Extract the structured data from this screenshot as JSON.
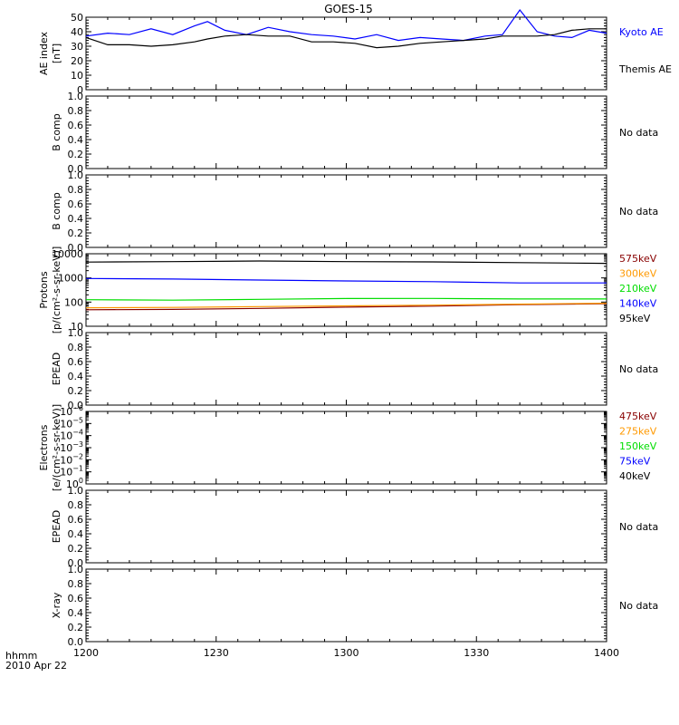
{
  "title": "GOES-15",
  "x_axis": {
    "ticks": [
      "1200",
      "1230",
      "1300",
      "1330",
      "1400"
    ],
    "range_minutes": [
      0,
      120
    ],
    "label_line1": "hhmm",
    "label_line2": "2010 Apr 22"
  },
  "no_data_label": "No data",
  "chart_data": [
    {
      "type": "line",
      "ylabel": [
        "AE index",
        "[nT]"
      ],
      "ylim": [
        0,
        50
      ],
      "yticks": [
        "0",
        "10",
        "20",
        "30",
        "40",
        "50"
      ],
      "x_minutes": [
        0,
        5,
        10,
        15,
        20,
        25,
        28,
        32,
        37,
        42,
        47,
        52,
        57,
        62,
        67,
        72,
        77,
        82,
        87,
        92,
        96,
        100,
        104,
        108,
        112,
        116,
        120
      ],
      "series": [
        {
          "name": "Kyoto AE",
          "color": "#0000ff",
          "values": [
            37,
            39,
            38,
            42,
            38,
            44,
            47,
            41,
            38,
            43,
            40,
            38,
            37,
            35,
            38,
            34,
            36,
            35,
            34,
            37,
            38,
            55,
            40,
            37,
            36,
            41,
            39
          ]
        },
        {
          "name": "Themis AE",
          "color": "#000000",
          "values": [
            36,
            31,
            31,
            30,
            31,
            33,
            35,
            37,
            38,
            37,
            37,
            33,
            33,
            32,
            29,
            30,
            32,
            33,
            34,
            35,
            37,
            37,
            37,
            38,
            41,
            42,
            42
          ]
        }
      ]
    },
    {
      "type": "line",
      "ylabel": [
        "B comp"
      ],
      "ylim": [
        0,
        1
      ],
      "yticks": [
        "0.0",
        "0.2",
        "0.4",
        "0.6",
        "0.8",
        "1.0"
      ],
      "series": [],
      "empty": true
    },
    {
      "type": "line",
      "ylabel": [
        "B comp"
      ],
      "ylim": [
        0,
        1
      ],
      "yticks": [
        "0.0",
        "0.2",
        "0.4",
        "0.6",
        "0.8",
        "1.0"
      ],
      "series": [],
      "empty": true
    },
    {
      "type": "line",
      "ylabel": [
        "Protons",
        "[p/(cm²-s-sr-keV)]"
      ],
      "log_scale": true,
      "ylim": [
        10,
        10000
      ],
      "yticks": [
        "10",
        "100",
        "1000",
        "10000"
      ],
      "x_minutes": [
        0,
        20,
        40,
        60,
        80,
        100,
        120
      ],
      "series": [
        {
          "name": "575keV",
          "color": "#880000",
          "values": [
            48,
            50,
            55,
            62,
            68,
            78,
            85
          ]
        },
        {
          "name": "300keV",
          "color": "#ff9900",
          "values": [
            58,
            60,
            65,
            70,
            75,
            82,
            90
          ]
        },
        {
          "name": "210keV",
          "color": "#00dd00",
          "values": [
            125,
            120,
            130,
            140,
            142,
            135,
            135
          ]
        },
        {
          "name": "140keV",
          "color": "#0000ff",
          "values": [
            950,
            900,
            820,
            750,
            700,
            620,
            620
          ]
        },
        {
          "name": "95keV",
          "color": "#000000",
          "values": [
            4500,
            4700,
            5000,
            4700,
            4600,
            4300,
            4000
          ]
        }
      ]
    },
    {
      "type": "line",
      "ylabel": [
        "EPEAD"
      ],
      "ylim": [
        0,
        1
      ],
      "yticks": [
        "0.0",
        "0.2",
        "0.4",
        "0.6",
        "0.8",
        "1.0"
      ],
      "series": [],
      "empty": true
    },
    {
      "type": "line",
      "ylabel": [
        "Electrons",
        "[e/(cm²-s-sr-keV)]"
      ],
      "log_scale": true,
      "ylim": [
        1e-06,
        1
      ],
      "yticks": [
        {
          "b": "10",
          "e": "0"
        },
        {
          "b": "10",
          "e": "−1"
        },
        {
          "b": "10",
          "e": "−2"
        },
        {
          "b": "10",
          "e": "−3"
        },
        {
          "b": "10",
          "e": "−4"
        },
        {
          "b": "10",
          "e": "−5"
        },
        {
          "b": "10",
          "e": "−6"
        }
      ],
      "series": [
        {
          "name": "475keV",
          "color": "#880000",
          "values": []
        },
        {
          "name": "275keV",
          "color": "#ff9900",
          "values": []
        },
        {
          "name": "150keV",
          "color": "#00dd00",
          "values": []
        },
        {
          "name": "75keV",
          "color": "#0000ff",
          "values": []
        },
        {
          "name": "40keV",
          "color": "#000000",
          "values": []
        }
      ]
    },
    {
      "type": "line",
      "ylabel": [
        "EPEAD"
      ],
      "ylim": [
        0,
        1
      ],
      "yticks": [
        "0.0",
        "0.2",
        "0.4",
        "0.6",
        "0.8",
        "1.0"
      ],
      "series": [],
      "empty": true
    },
    {
      "type": "line",
      "ylabel": [
        "X-ray"
      ],
      "ylim": [
        0,
        1
      ],
      "yticks": [
        "0.0",
        "0.2",
        "0.4",
        "0.6",
        "0.8",
        "1.0"
      ],
      "series": [],
      "empty": true
    }
  ]
}
